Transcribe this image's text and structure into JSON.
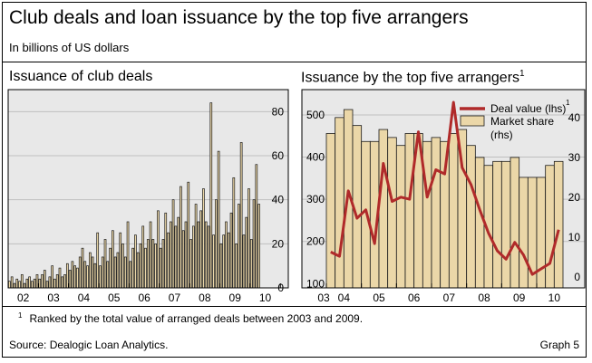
{
  "header": {
    "title": "Club deals and loan issuance by the top five arrangers",
    "subtitle": "In billions of US dollars"
  },
  "footer": {
    "footnote_marker": "1",
    "footnote": "Ranked by the total value of arranged deals between 2003 and 2009.",
    "source": "Source: Dealogic Loan Analytics.",
    "graph_number": "Graph 5"
  },
  "colors": {
    "bar_fill": "#ebd7a8",
    "bar_stroke": "#1a1a1a",
    "line": "#b02a2a",
    "grid": "#bfbfbf"
  },
  "chart_data": [
    {
      "type": "bar",
      "title": "Issuance of club deals",
      "title_sup": "",
      "xlabel": "",
      "ylabel": "",
      "frequency": "monthly",
      "x_tick_labels": [
        "02",
        "03",
        "04",
        "05",
        "06",
        "07",
        "08",
        "09",
        "10"
      ],
      "y_ticks": [
        0,
        20,
        40,
        60,
        80
      ],
      "ylim": [
        0,
        90
      ],
      "values": [
        3,
        5,
        2,
        4,
        3,
        6,
        2,
        4,
        5,
        3,
        4,
        6,
        4,
        6,
        8,
        3,
        5,
        10,
        4,
        6,
        9,
        5,
        6,
        11,
        8,
        12,
        10,
        9,
        14,
        18,
        12,
        10,
        16,
        14,
        11,
        25,
        10,
        14,
        22,
        12,
        18,
        26,
        14,
        16,
        25,
        20,
        14,
        30,
        12,
        18,
        24,
        16,
        20,
        28,
        18,
        22,
        30,
        22,
        20,
        35,
        18,
        22,
        34,
        25,
        30,
        40,
        28,
        32,
        46,
        26,
        30,
        48,
        22,
        28,
        38,
        30,
        35,
        45,
        30,
        28,
        84,
        24,
        40,
        62,
        20,
        24,
        30,
        25,
        34,
        50,
        20,
        38,
        66,
        24,
        32,
        45,
        22,
        40,
        56,
        38
      ]
    },
    {
      "type": "bar+line",
      "title": "Issuance by the top five arrangers",
      "title_sup": "1",
      "frequency": "quarterly",
      "x_tick_labels": [
        "03",
        "04",
        "05",
        "06",
        "07",
        "08",
        "09",
        "10"
      ],
      "left_axis": {
        "ticks": [
          100,
          200,
          300,
          400,
          500
        ],
        "ylim": [
          90,
          560
        ]
      },
      "right_axis": {
        "ticks": [
          0,
          10,
          20,
          30,
          40
        ],
        "ylim": [
          -2.7,
          47
        ]
      },
      "legend": {
        "placement": "top-right",
        "deal_value_sup": "1",
        "market_share_line2": "(rhs)"
      },
      "series": [
        {
          "name": "Deal value (lhs)",
          "axis": "left",
          "kind": "line",
          "values": [
            175,
            165,
            320,
            255,
            275,
            195,
            385,
            295,
            305,
            300,
            460,
            305,
            370,
            360,
            530,
            375,
            335,
            275,
            220,
            178,
            158,
            198,
            168,
            122,
            135,
            148,
            228
          ]
        },
        {
          "name": "Market share",
          "axis": "right",
          "kind": "bar",
          "values": [
            36,
            40,
            42,
            38,
            34,
            34,
            37,
            35,
            33,
            36,
            36,
            34,
            35,
            34,
            36,
            37,
            33,
            30,
            28,
            29,
            29,
            30,
            25,
            25,
            25,
            28,
            29
          ]
        }
      ]
    }
  ]
}
